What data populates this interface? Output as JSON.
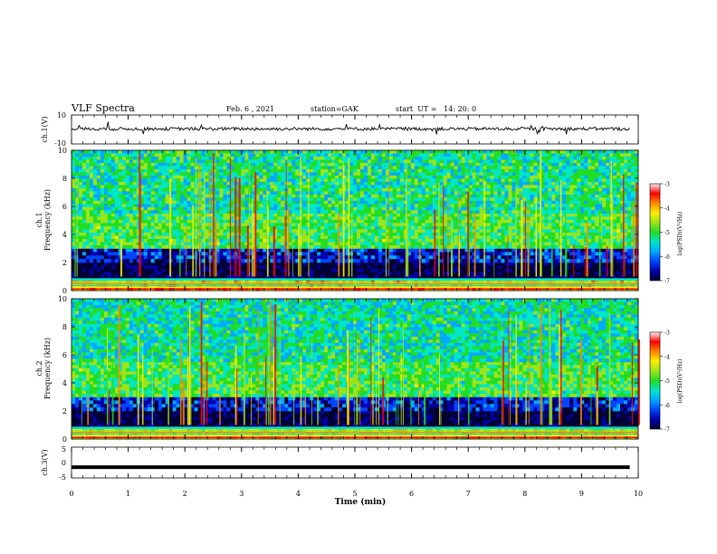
{
  "header": {
    "title": "VLF Spectra",
    "date": "Feb. 6 , 2021",
    "station": "station=GAK",
    "start": "start  UT =   14: 20: 0"
  },
  "chart_data": [
    {
      "type": "line",
      "panel": "ch1_waveform",
      "ylabel": "ch.1(V)",
      "ylim": [
        -10,
        10
      ],
      "yticklabels": [
        "10",
        "-10"
      ],
      "xlim": [
        0,
        10
      ],
      "series": [
        {
          "values_summary": "noisy signal near 0 V with occasional spikes"
        }
      ]
    },
    {
      "type": "heatmap",
      "panel": "ch1_spectrogram",
      "ylabel": "ch.1",
      "ylabel2": "Frequency (kHz)",
      "ylim": [
        0,
        10
      ],
      "yticklabels": [
        "0",
        "2",
        "4",
        "6",
        "8",
        "10"
      ],
      "xlim": [
        0,
        10
      ],
      "colorbar": {
        "label": "log(PSD)(V²/Hz)",
        "range": [
          -7,
          -3
        ],
        "ticklabels": [
          "-3",
          "-4",
          "-5",
          "-6",
          "-7"
        ]
      },
      "bands": [
        {
          "from_khz": 0.0,
          "to_khz": 0.7,
          "level": -4.2
        },
        {
          "from_khz": 0.9,
          "to_khz": 2.0,
          "level": -6.9
        },
        {
          "from_khz": 2.0,
          "to_khz": 3.0,
          "level": -6.3
        },
        {
          "from_khz": 3.0,
          "to_khz": 5.5,
          "level": -5.0
        },
        {
          "from_khz": 5.5,
          "to_khz": 10.0,
          "level": -5.2
        }
      ]
    },
    {
      "type": "heatmap",
      "panel": "ch2_spectrogram",
      "ylabel": "ch.2",
      "ylabel2": "Frequency (kHz)",
      "ylim": [
        0,
        10
      ],
      "yticklabels": [
        "0",
        "2",
        "4",
        "6",
        "8",
        "10"
      ],
      "xlim": [
        0,
        10
      ],
      "colorbar": {
        "label": "log(PSD)(V²/Hz)",
        "range": [
          -7,
          -3
        ],
        "ticklabels": [
          "-3",
          "-4",
          "-5",
          "-6",
          "-7"
        ]
      },
      "bands": [
        {
          "from_khz": 0.0,
          "to_khz": 0.7,
          "level": -4.4
        },
        {
          "from_khz": 0.9,
          "to_khz": 2.0,
          "level": -6.9
        },
        {
          "from_khz": 2.0,
          "to_khz": 3.0,
          "level": -6.3
        },
        {
          "from_khz": 3.0,
          "to_khz": 5.5,
          "level": -5.0
        },
        {
          "from_khz": 5.5,
          "to_khz": 10.0,
          "level": -5.3
        }
      ]
    },
    {
      "type": "line",
      "panel": "ch3_waveform",
      "ylabel": "ch.3(V)",
      "ylim": [
        -5,
        5
      ],
      "yticklabels": [
        "5",
        "0",
        "-5"
      ],
      "xlim": [
        0,
        10
      ],
      "series": [
        {
          "values_summary": "constant near -1.5 V"
        }
      ]
    }
  ],
  "xaxis": {
    "label": "Time (min)",
    "ticklabels": [
      "0",
      "1",
      "2",
      "3",
      "4",
      "5",
      "6",
      "7",
      "8",
      "9",
      "10"
    ]
  },
  "colors": {
    "frame": "#000000",
    "background": "#ffffff"
  },
  "colormap": [
    "#000033",
    "#0000aa",
    "#0044ff",
    "#00aaff",
    "#00e6c8",
    "#22dd22",
    "#9be51a",
    "#ffee00",
    "#ff8800",
    "#ff0000",
    "#ffeeee"
  ]
}
